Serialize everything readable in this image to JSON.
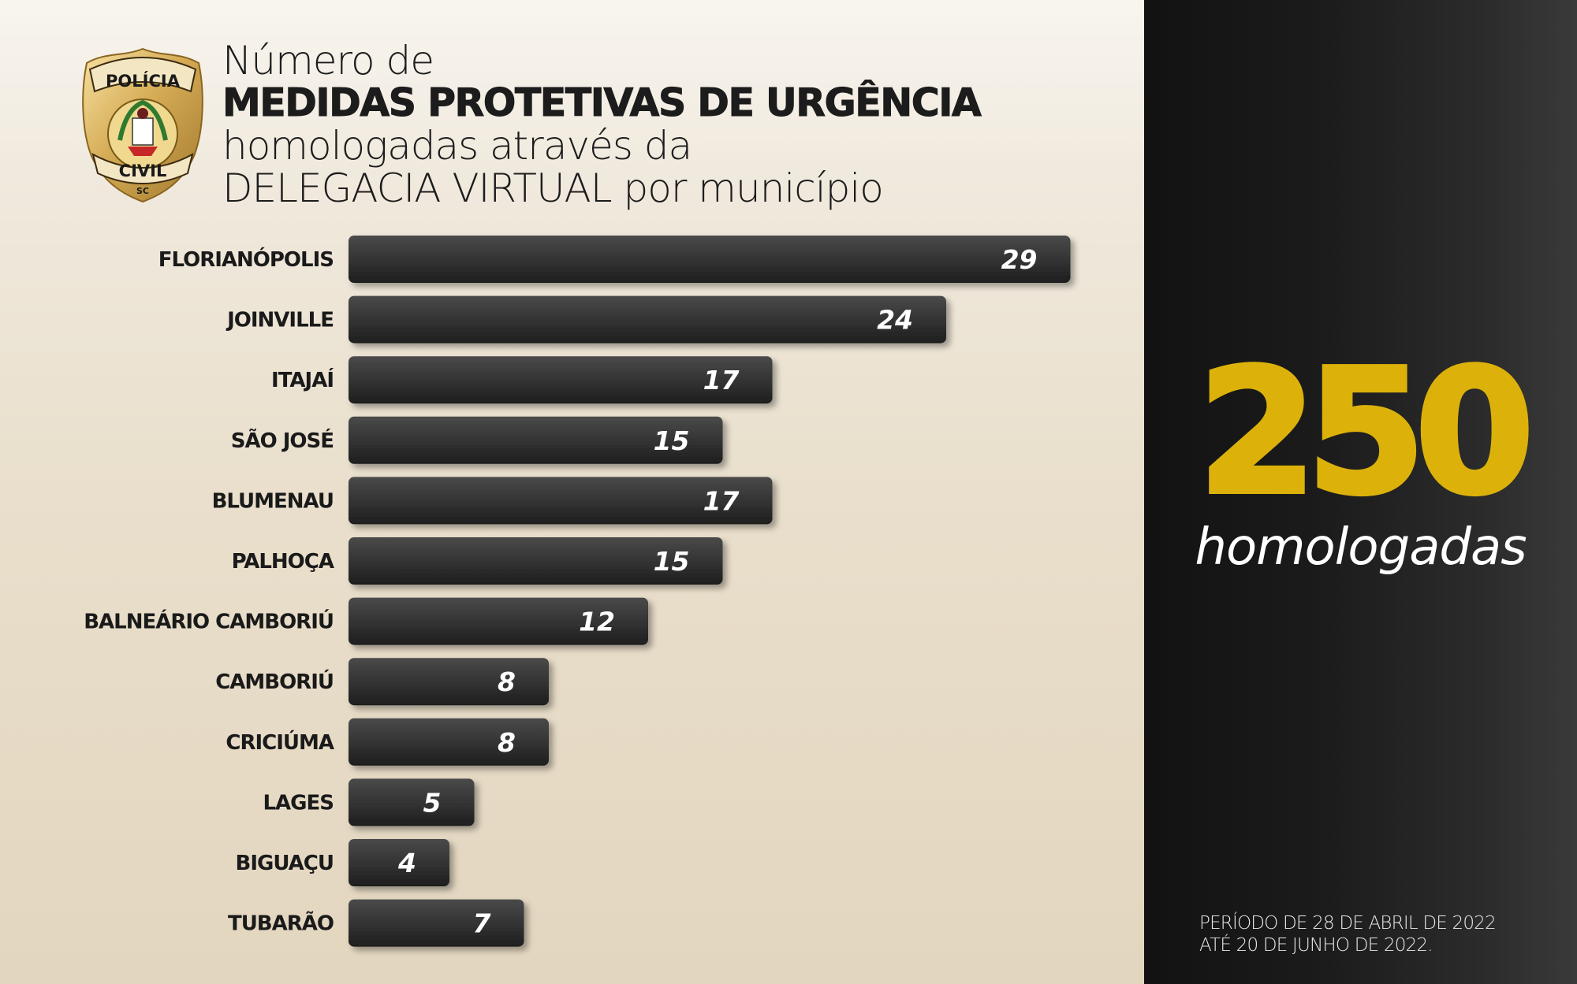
{
  "header": {
    "line1": "Número de",
    "line2": "MEDIDAS PROTETIVAS DE URGÊNCIA",
    "line3": "homologadas através da",
    "line4": "DELEGACIA VIRTUAL por município"
  },
  "badge": {
    "top_text": "POLÍCIA",
    "bottom_text": "CIVIL",
    "state": "SC",
    "icon": "police-badge-icon"
  },
  "summary": {
    "total": "250",
    "label": "homologadas",
    "period_line1": "PERÍODO DE 28 DE ABRIL DE 2022",
    "period_line2": "ATÉ 20 DE JUNHO DE 2022."
  },
  "colors": {
    "accent": "#dcb20a",
    "bar_top": "#4a4a4a",
    "bar_bottom": "#1e1e1e",
    "text_dark": "#1c1c1c"
  },
  "chart_data": {
    "type": "bar",
    "orientation": "horizontal",
    "title": "Número de MEDIDAS PROTETIVAS DE URGÊNCIA homologadas através da DELEGACIA VIRTUAL por município",
    "categories": [
      "FLORIANÓPOLIS",
      "JOINVILLE",
      "ITAJAÍ",
      "SÃO JOSÉ",
      "BLUMENAU",
      "PALHOÇA",
      "BALNEÁRIO CAMBORIÚ",
      "CAMBORIÚ",
      "CRICIÚMA",
      "LAGES",
      "BIGUAÇU",
      "TUBARÃO"
    ],
    "values": [
      29,
      24,
      17,
      15,
      17,
      15,
      12,
      8,
      8,
      5,
      4,
      7
    ],
    "xlabel": "",
    "ylabel": "",
    "grid": false,
    "legend": "none"
  }
}
